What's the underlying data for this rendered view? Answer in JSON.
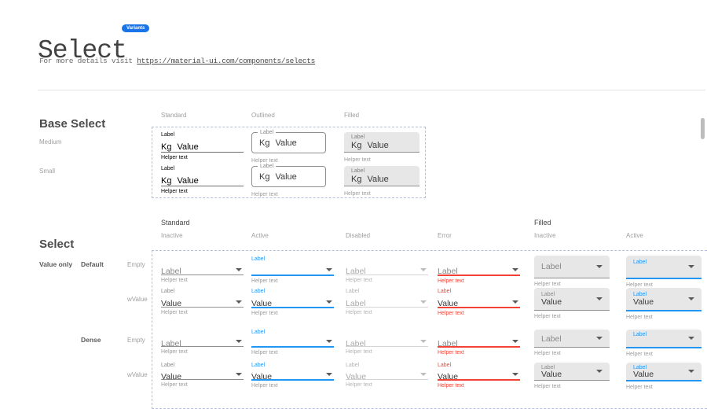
{
  "colors": {
    "accent_blue": "#2196f3",
    "error_red": "#f44336",
    "badge_bg": "#1a73e8",
    "dashed_border": "#b6bce4",
    "filled_bg": "#e7e7e7"
  },
  "header": {
    "title": "Select",
    "badge": "Variants",
    "subtitle_prefix": "For more details visit ",
    "subtitle_link": "https://material-ui.com/components/selects"
  },
  "base_select": {
    "heading": "Base Select",
    "columns": [
      {
        "header": "Standard",
        "type": "standard"
      },
      {
        "header": "Outlined",
        "type": "outlined"
      },
      {
        "header": "Filled",
        "type": "filled"
      }
    ],
    "rows": [
      {
        "label": "Medium",
        "size": "medium"
      },
      {
        "label": "Small",
        "size": "small"
      }
    ],
    "cell": {
      "label": "Label",
      "adornment": "Kg",
      "value": "Value",
      "helper": "Helper text"
    }
  },
  "select": {
    "heading": "Select",
    "groups": [
      {
        "label": "Standard"
      },
      {
        "label": "Filled"
      }
    ],
    "columns": [
      {
        "header": "Inactive",
        "group": "Standard",
        "type": "standard",
        "state": "inactive"
      },
      {
        "header": "Active",
        "group": "Standard",
        "type": "standard",
        "state": "active"
      },
      {
        "header": "Disabled",
        "group": "Standard",
        "type": "standard",
        "state": "disabled"
      },
      {
        "header": "Error",
        "group": "Standard",
        "type": "standard",
        "state": "error"
      },
      {
        "header": "Inactive",
        "group": "Filled",
        "type": "filled",
        "state": "inactive"
      },
      {
        "header": "Active",
        "group": "Filled",
        "type": "filled",
        "state": "active"
      }
    ],
    "row_labels": [
      {
        "group": "Value only",
        "name": "Default",
        "variant": "Empty",
        "dense": false
      },
      {
        "variant": "wValue",
        "dense": false
      },
      {
        "name": "Dense",
        "variant": "Empty",
        "dense": true
      },
      {
        "variant": "wValue",
        "dense": true
      }
    ],
    "cells": [
      [
        {
          "float_label": null,
          "text": "Label",
          "helper": "Helper text"
        },
        {
          "float_label": "Label",
          "text": null,
          "helper": "Helper text"
        },
        {
          "float_label": null,
          "text": "Label",
          "helper": "Helper text"
        },
        {
          "float_label": null,
          "text": "Label",
          "helper": "Helper text"
        },
        {
          "float_label": null,
          "text": "Label",
          "helper": "Helper text"
        },
        {
          "float_label": "Label",
          "text": null,
          "helper": "Helper text"
        }
      ],
      [
        {
          "float_label": "Label",
          "text": "Value",
          "helper": "Helper text"
        },
        {
          "float_label": "Label",
          "text": "Value",
          "helper": "Helper text"
        },
        {
          "float_label": "Label",
          "text": "Label",
          "helper": "Helper text"
        },
        {
          "float_label": "Label",
          "text": "Value",
          "helper": "Helper text"
        },
        {
          "float_label": "Label",
          "text": "Value",
          "helper": "Helper text"
        },
        {
          "float_label": "Label",
          "text": "Value",
          "helper": "Helper text"
        }
      ],
      [
        {
          "float_label": null,
          "text": "Label",
          "helper": "Helper text"
        },
        {
          "float_label": "Label",
          "text": null,
          "helper": "Helper text"
        },
        {
          "float_label": null,
          "text": "Label",
          "helper": "Helper text"
        },
        {
          "float_label": null,
          "text": "Label",
          "helper": "Helper text"
        },
        {
          "float_label": null,
          "text": "Label",
          "helper": "Helper text"
        },
        {
          "float_label": "Label",
          "text": null,
          "helper": "Helper text"
        }
      ],
      [
        {
          "float_label": "Label",
          "text": "Value",
          "helper": "Helper text"
        },
        {
          "float_label": "Label",
          "text": "Value",
          "helper": "Helper text"
        },
        {
          "float_label": "Label",
          "text": "Value",
          "helper": "Helper text"
        },
        {
          "float_label": "Label",
          "text": "Value",
          "helper": "Helper text"
        },
        {
          "float_label": "Label",
          "text": "Value",
          "helper": "Helper text"
        },
        {
          "float_label": "Label",
          "text": "Value",
          "helper": "Helper text"
        }
      ]
    ]
  }
}
